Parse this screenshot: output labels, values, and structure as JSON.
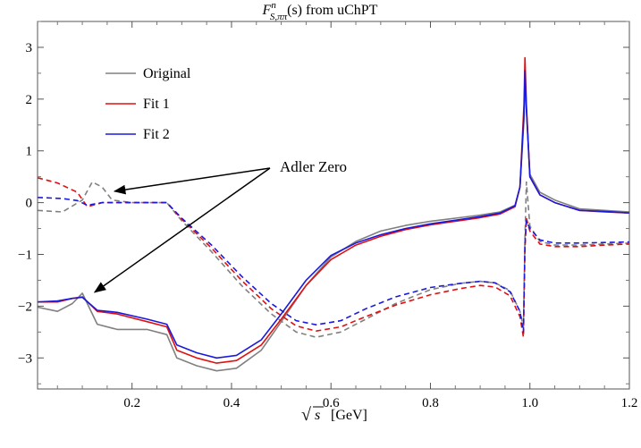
{
  "chart_data": {
    "type": "line",
    "title": {
      "main": "F",
      "sup": "n",
      "sub": "S,ππ",
      "rest": "(s) from uChPT"
    },
    "xlabel": {
      "sqrt": "s",
      "unit": "[GeV]"
    },
    "ylabel": "",
    "xlim": [
      0.01,
      1.2
    ],
    "ylim": [
      -3.6,
      3.5
    ],
    "xticks": [
      0.2,
      0.4,
      0.6,
      0.8,
      1.0,
      1.2
    ],
    "xtick_labels": [
      "0.2",
      "0.4",
      "0.6",
      "0.8",
      "1.0",
      "1.2"
    ],
    "yticks": [
      -3,
      -2,
      -1,
      0,
      1,
      2,
      3
    ],
    "ytick_labels": [
      "−3",
      "−2",
      "−1",
      "0",
      "1",
      "2",
      "3"
    ],
    "grid": false,
    "legend_position": "top-left",
    "annotation": {
      "text": "Adler Zero",
      "targets": [
        [
          0.165,
          0.22
        ],
        [
          0.125,
          -1.73
        ]
      ]
    },
    "series": [
      {
        "name": "Original",
        "color": "#808080",
        "dash": false,
        "points": [
          [
            0.01,
            -2.02
          ],
          [
            0.05,
            -2.1
          ],
          [
            0.08,
            -1.95
          ],
          [
            0.1,
            -1.75
          ],
          [
            0.13,
            -2.35
          ],
          [
            0.17,
            -2.45
          ],
          [
            0.23,
            -2.45
          ],
          [
            0.27,
            -2.55
          ],
          [
            0.29,
            -3.0
          ],
          [
            0.33,
            -3.15
          ],
          [
            0.37,
            -3.25
          ],
          [
            0.41,
            -3.2
          ],
          [
            0.46,
            -2.85
          ],
          [
            0.5,
            -2.3
          ],
          [
            0.55,
            -1.6
          ],
          [
            0.6,
            -1.05
          ],
          [
            0.65,
            -0.75
          ],
          [
            0.7,
            -0.55
          ],
          [
            0.75,
            -0.44
          ],
          [
            0.8,
            -0.36
          ],
          [
            0.85,
            -0.3
          ],
          [
            0.9,
            -0.24
          ],
          [
            0.94,
            -0.18
          ],
          [
            0.97,
            -0.05
          ],
          [
            0.98,
            0.3
          ],
          [
            0.988,
            1.6
          ],
          [
            0.99,
            2.35
          ],
          [
            0.993,
            1.8
          ],
          [
            1.0,
            0.55
          ],
          [
            1.02,
            0.2
          ],
          [
            1.05,
            0.05
          ],
          [
            1.1,
            -0.12
          ],
          [
            1.15,
            -0.15
          ],
          [
            1.2,
            -0.18
          ]
        ]
      },
      {
        "name": "Original",
        "color": "#808080",
        "dash": true,
        "points": [
          [
            0.01,
            -0.15
          ],
          [
            0.06,
            -0.18
          ],
          [
            0.1,
            0.05
          ],
          [
            0.12,
            0.4
          ],
          [
            0.14,
            0.3
          ],
          [
            0.16,
            0.05
          ],
          [
            0.2,
            0.0
          ],
          [
            0.27,
            0.0
          ],
          [
            0.3,
            -0.35
          ],
          [
            0.36,
            -0.95
          ],
          [
            0.42,
            -1.6
          ],
          [
            0.48,
            -2.15
          ],
          [
            0.53,
            -2.5
          ],
          [
            0.57,
            -2.6
          ],
          [
            0.62,
            -2.5
          ],
          [
            0.67,
            -2.25
          ],
          [
            0.73,
            -1.95
          ],
          [
            0.8,
            -1.68
          ],
          [
            0.86,
            -1.56
          ],
          [
            0.9,
            -1.52
          ],
          [
            0.93,
            -1.55
          ],
          [
            0.96,
            -1.7
          ],
          [
            0.98,
            -2.1
          ],
          [
            0.987,
            -2.4
          ],
          [
            0.99,
            -0.7
          ],
          [
            0.993,
            0.4
          ],
          [
            1.0,
            -0.45
          ],
          [
            1.02,
            -0.75
          ],
          [
            1.05,
            -0.82
          ],
          [
            1.1,
            -0.82
          ],
          [
            1.15,
            -0.8
          ],
          [
            1.2,
            -0.78
          ]
        ]
      },
      {
        "name": "Fit 1",
        "color": "#e01010",
        "dash": false,
        "points": [
          [
            0.01,
            -1.92
          ],
          [
            0.05,
            -1.92
          ],
          [
            0.08,
            -1.85
          ],
          [
            0.1,
            -1.82
          ],
          [
            0.13,
            -2.1
          ],
          [
            0.17,
            -2.15
          ],
          [
            0.23,
            -2.3
          ],
          [
            0.27,
            -2.4
          ],
          [
            0.29,
            -2.85
          ],
          [
            0.33,
            -3.0
          ],
          [
            0.37,
            -3.1
          ],
          [
            0.41,
            -3.05
          ],
          [
            0.46,
            -2.75
          ],
          [
            0.5,
            -2.25
          ],
          [
            0.55,
            -1.6
          ],
          [
            0.6,
            -1.1
          ],
          [
            0.65,
            -0.82
          ],
          [
            0.7,
            -0.65
          ],
          [
            0.75,
            -0.52
          ],
          [
            0.8,
            -0.43
          ],
          [
            0.85,
            -0.36
          ],
          [
            0.9,
            -0.29
          ],
          [
            0.94,
            -0.22
          ],
          [
            0.97,
            -0.08
          ],
          [
            0.98,
            0.3
          ],
          [
            0.988,
            1.9
          ],
          [
            0.99,
            2.8
          ],
          [
            0.993,
            1.9
          ],
          [
            1.0,
            0.5
          ],
          [
            1.02,
            0.15
          ],
          [
            1.05,
            0.0
          ],
          [
            1.1,
            -0.15
          ],
          [
            1.15,
            -0.18
          ],
          [
            1.2,
            -0.2
          ]
        ]
      },
      {
        "name": "Fit 1",
        "color": "#e01010",
        "dash": true,
        "points": [
          [
            0.01,
            0.48
          ],
          [
            0.05,
            0.38
          ],
          [
            0.09,
            0.2
          ],
          [
            0.11,
            -0.08
          ],
          [
            0.14,
            0.0
          ],
          [
            0.2,
            0.0
          ],
          [
            0.27,
            0.0
          ],
          [
            0.3,
            -0.32
          ],
          [
            0.36,
            -0.88
          ],
          [
            0.42,
            -1.5
          ],
          [
            0.48,
            -2.05
          ],
          [
            0.53,
            -2.38
          ],
          [
            0.57,
            -2.48
          ],
          [
            0.62,
            -2.4
          ],
          [
            0.67,
            -2.2
          ],
          [
            0.73,
            -1.98
          ],
          [
            0.8,
            -1.78
          ],
          [
            0.86,
            -1.66
          ],
          [
            0.9,
            -1.6
          ],
          [
            0.93,
            -1.63
          ],
          [
            0.96,
            -1.8
          ],
          [
            0.98,
            -2.2
          ],
          [
            0.987,
            -2.6
          ],
          [
            0.99,
            -0.9
          ],
          [
            0.993,
            -0.3
          ],
          [
            1.0,
            -0.55
          ],
          [
            1.02,
            -0.8
          ],
          [
            1.05,
            -0.85
          ],
          [
            1.1,
            -0.85
          ],
          [
            1.15,
            -0.82
          ],
          [
            1.2,
            -0.8
          ]
        ]
      },
      {
        "name": "Fit 2",
        "color": "#1a1adc",
        "dash": false,
        "points": [
          [
            0.01,
            -1.92
          ],
          [
            0.05,
            -1.9
          ],
          [
            0.08,
            -1.85
          ],
          [
            0.1,
            -1.83
          ],
          [
            0.13,
            -2.08
          ],
          [
            0.17,
            -2.12
          ],
          [
            0.23,
            -2.25
          ],
          [
            0.27,
            -2.35
          ],
          [
            0.29,
            -2.75
          ],
          [
            0.33,
            -2.9
          ],
          [
            0.37,
            -3.0
          ],
          [
            0.41,
            -2.95
          ],
          [
            0.46,
            -2.65
          ],
          [
            0.5,
            -2.15
          ],
          [
            0.55,
            -1.5
          ],
          [
            0.6,
            -1.02
          ],
          [
            0.65,
            -0.78
          ],
          [
            0.7,
            -0.62
          ],
          [
            0.75,
            -0.5
          ],
          [
            0.8,
            -0.41
          ],
          [
            0.85,
            -0.34
          ],
          [
            0.9,
            -0.27
          ],
          [
            0.94,
            -0.2
          ],
          [
            0.97,
            -0.06
          ],
          [
            0.98,
            0.3
          ],
          [
            0.988,
            1.7
          ],
          [
            0.99,
            2.55
          ],
          [
            0.993,
            1.8
          ],
          [
            1.0,
            0.5
          ],
          [
            1.02,
            0.15
          ],
          [
            1.05,
            0.0
          ],
          [
            1.1,
            -0.15
          ],
          [
            1.15,
            -0.17
          ],
          [
            1.2,
            -0.2
          ]
        ]
      },
      {
        "name": "Fit 2",
        "color": "#1a1adc",
        "dash": true,
        "points": [
          [
            0.01,
            0.1
          ],
          [
            0.06,
            0.08
          ],
          [
            0.09,
            0.04
          ],
          [
            0.11,
            -0.05
          ],
          [
            0.14,
            0.0
          ],
          [
            0.2,
            0.0
          ],
          [
            0.27,
            0.0
          ],
          [
            0.3,
            -0.3
          ],
          [
            0.36,
            -0.82
          ],
          [
            0.42,
            -1.42
          ],
          [
            0.48,
            -1.95
          ],
          [
            0.53,
            -2.28
          ],
          [
            0.57,
            -2.36
          ],
          [
            0.62,
            -2.28
          ],
          [
            0.67,
            -2.05
          ],
          [
            0.73,
            -1.82
          ],
          [
            0.8,
            -1.64
          ],
          [
            0.86,
            -1.56
          ],
          [
            0.9,
            -1.52
          ],
          [
            0.93,
            -1.55
          ],
          [
            0.96,
            -1.72
          ],
          [
            0.98,
            -2.1
          ],
          [
            0.987,
            -2.5
          ],
          [
            0.99,
            -0.8
          ],
          [
            0.993,
            -0.35
          ],
          [
            1.0,
            -0.5
          ],
          [
            1.02,
            -0.72
          ],
          [
            1.05,
            -0.78
          ],
          [
            1.1,
            -0.78
          ],
          [
            1.15,
            -0.77
          ],
          [
            1.2,
            -0.76
          ]
        ]
      }
    ]
  },
  "legend": [
    {
      "label": "Original",
      "color": "#808080"
    },
    {
      "label": "Fit 1",
      "color": "#e01010"
    },
    {
      "label": "Fit 2",
      "color": "#1a1adc"
    }
  ]
}
